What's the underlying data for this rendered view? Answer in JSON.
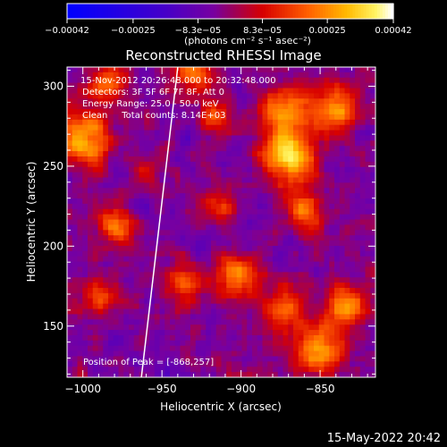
{
  "chart_data": {
    "type": "heatmap",
    "title": "Reconstructed RHESSI Image",
    "xlabel": "Heliocentric X (arcsec)",
    "ylabel": "Heliocentric Y (arcsec)",
    "xlim": [
      -1010,
      -815
    ],
    "ylim": [
      118,
      312
    ],
    "x_ticks": [
      -1000,
      -950,
      -900,
      -850
    ],
    "x_tick_labels": [
      "−1000",
      "−950",
      "−900",
      "−850"
    ],
    "y_ticks": [
      150,
      200,
      250,
      300
    ],
    "y_tick_labels": [
      "150",
      "200",
      "250",
      "300"
    ],
    "colorbar": {
      "ticks": [
        -0.00042,
        -0.00025,
        -8.3e-05,
        8.3e-05,
        0.00025,
        0.00042
      ],
      "tick_labels": [
        "−0.00042",
        "−0.00025",
        "−8.3e−05",
        "8.3e−05",
        "0.00025",
        "0.00042"
      ],
      "units_label": "(photons cm⁻² s⁻¹ asec⁻²)",
      "range": [
        -0.00042,
        0.00042
      ]
    },
    "info_lines": [
      "15-Nov-2012 20:26:48.000 to 20:32:48.000",
      "Detectors: 3F 5F 6F 7F 8F, Att 0",
      "Energy Range: 25.0 - 50.0 keV",
      "Clean     Total counts: 8.14E+03"
    ],
    "peak_label": "Position of Peak = [-868,257]",
    "peak": [
      -868,
      257
    ],
    "limb_line": [
      [
        -963,
        118
      ],
      [
        -940,
        312
      ]
    ],
    "sources": [
      {
        "x": -868,
        "y": 257,
        "amp": 0.0004,
        "sigma": 12
      },
      {
        "x": -871,
        "y": 285,
        "amp": 0.0003,
        "sigma": 10
      },
      {
        "x": -858,
        "y": 222,
        "amp": 0.00025,
        "sigma": 9
      },
      {
        "x": -838,
        "y": 286,
        "amp": 0.00028,
        "sigma": 11
      },
      {
        "x": -998,
        "y": 267,
        "amp": 0.00034,
        "sigma": 11
      },
      {
        "x": -985,
        "y": 300,
        "amp": 0.00024,
        "sigma": 9
      },
      {
        "x": -978,
        "y": 212,
        "amp": 0.00026,
        "sigma": 8
      },
      {
        "x": -930,
        "y": 308,
        "amp": 0.00028,
        "sigma": 8
      },
      {
        "x": -915,
        "y": 283,
        "amp": 0.0002,
        "sigma": 8
      },
      {
        "x": -900,
        "y": 180,
        "amp": 0.00028,
        "sigma": 10
      },
      {
        "x": -935,
        "y": 175,
        "amp": 0.00022,
        "sigma": 8
      },
      {
        "x": -850,
        "y": 135,
        "amp": 0.00034,
        "sigma": 11
      },
      {
        "x": -830,
        "y": 160,
        "amp": 0.0003,
        "sigma": 9
      },
      {
        "x": -870,
        "y": 160,
        "amp": 0.00024,
        "sigma": 9
      },
      {
        "x": -990,
        "y": 168,
        "amp": 0.0002,
        "sigma": 8
      },
      {
        "x": -960,
        "y": 245,
        "amp": 0.00014,
        "sigma": 7
      },
      {
        "x": -910,
        "y": 225,
        "amp": 0.00016,
        "sigma": 8
      }
    ]
  },
  "timestamp": "15-May-2022 20:42"
}
